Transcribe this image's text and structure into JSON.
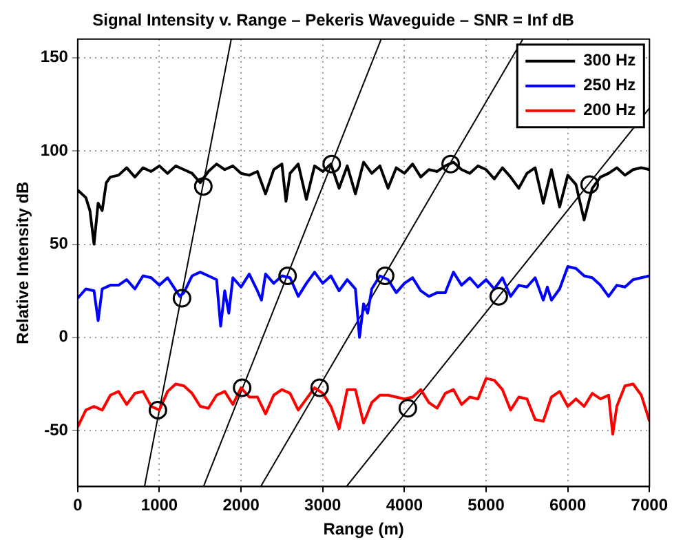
{
  "chart_data": {
    "type": "line",
    "title": "Signal Intensity v. Range – Pekeris Waveguide – SNR = Inf dB",
    "xlabel": "Range (m)",
    "ylabel": "Relative Intensity dB",
    "xlim": [
      0,
      7000
    ],
    "xticks": [
      0,
      1000,
      2000,
      3000,
      4000,
      5000,
      6000,
      7000
    ],
    "ylim": [
      -80,
      160
    ],
    "yticks": [
      -50,
      0,
      50,
      100,
      150
    ],
    "grid": true,
    "legend": "top right",
    "marker": "none",
    "line_style": "solid",
    "series": [
      {
        "name": "300 Hz",
        "color": "#000000",
        "x": [
          0,
          100,
          150,
          200,
          250,
          300,
          350,
          400,
          500,
          600,
          700,
          800,
          900,
          1000,
          1100,
          1200,
          1300,
          1400,
          1500,
          1600,
          1700,
          1800,
          1900,
          2000,
          2100,
          2200,
          2300,
          2400,
          2500,
          2550,
          2600,
          2700,
          2800,
          2900,
          3000,
          3100,
          3200,
          3300,
          3400,
          3500,
          3600,
          3700,
          3800,
          3900,
          4000,
          4100,
          4200,
          4300,
          4400,
          4500,
          4600,
          4700,
          4800,
          4900,
          5000,
          5100,
          5200,
          5300,
          5400,
          5500,
          5600,
          5700,
          5800,
          5900,
          6000,
          6100,
          6200,
          6300,
          6400,
          6500,
          6600,
          6700,
          6800,
          6900,
          7000
        ],
        "values": [
          79,
          75,
          68,
          50,
          72,
          68,
          83,
          86,
          87,
          91,
          86,
          91,
          89,
          92,
          88,
          92,
          90,
          88,
          83,
          89,
          93,
          90,
          92,
          88,
          87,
          89,
          77,
          90,
          93,
          73,
          88,
          93,
          74,
          92,
          89,
          93,
          80,
          92,
          77,
          94,
          88,
          92,
          80,
          91,
          88,
          93,
          86,
          90,
          89,
          92,
          94,
          90,
          88,
          92,
          90,
          85,
          91,
          86,
          80,
          88,
          91,
          72,
          90,
          70,
          87,
          82,
          63,
          80,
          86,
          88,
          91,
          87,
          90,
          91,
          90
        ]
      },
      {
        "name": "250 Hz",
        "color": "#0000ff",
        "x": [
          0,
          100,
          200,
          250,
          300,
          400,
          500,
          600,
          700,
          800,
          900,
          1000,
          1100,
          1250,
          1300,
          1400,
          1500,
          1600,
          1700,
          1750,
          1800,
          1850,
          1900,
          2000,
          2100,
          2200,
          2250,
          2300,
          2400,
          2500,
          2600,
          2700,
          2800,
          2900,
          3000,
          3100,
          3200,
          3300,
          3400,
          3450,
          3500,
          3550,
          3600,
          3700,
          3800,
          3900,
          4000,
          4100,
          4200,
          4300,
          4400,
          4500,
          4600,
          4700,
          4800,
          4900,
          5000,
          5100,
          5200,
          5300,
          5400,
          5500,
          5600,
          5700,
          5750,
          5800,
          5900,
          6000,
          6100,
          6200,
          6300,
          6400,
          6500,
          6600,
          6700,
          6800,
          6900,
          7000
        ],
        "values": [
          21,
          26,
          25,
          9,
          26,
          28,
          28,
          31,
          26,
          33,
          32,
          28,
          32,
          22,
          24,
          33,
          35,
          33,
          31,
          6,
          25,
          13,
          32,
          27,
          34,
          25,
          20,
          34,
          29,
          33,
          32,
          22,
          29,
          35,
          29,
          33,
          25,
          31,
          26,
          0,
          18,
          13,
          26,
          33,
          31,
          24,
          29,
          32,
          25,
          22,
          24,
          24,
          35,
          28,
          32,
          27,
          31,
          26,
          32,
          22,
          28,
          27,
          32,
          20,
          27,
          20,
          26,
          38,
          37,
          33,
          32,
          28,
          22,
          28,
          27,
          31,
          32,
          33
        ]
      },
      {
        "name": "200 Hz",
        "color": "#ff0000",
        "x": [
          0,
          100,
          200,
          300,
          400,
          500,
          600,
          700,
          800,
          900,
          1000,
          1100,
          1200,
          1300,
          1400,
          1500,
          1600,
          1700,
          1800,
          1900,
          2000,
          2100,
          2200,
          2300,
          2400,
          2500,
          2600,
          2700,
          2800,
          2900,
          3000,
          3100,
          3200,
          3300,
          3400,
          3500,
          3600,
          3700,
          3800,
          3900,
          4000,
          4100,
          4200,
          4300,
          4400,
          4500,
          4600,
          4700,
          4800,
          4900,
          5000,
          5100,
          5200,
          5300,
          5400,
          5500,
          5600,
          5700,
          5800,
          5900,
          6000,
          6100,
          6200,
          6300,
          6400,
          6500,
          6550,
          6600,
          6700,
          6800,
          6900,
          7000
        ],
        "values": [
          -48,
          -39,
          -37,
          -39,
          -31,
          -29,
          -36,
          -30,
          -29,
          -37,
          -39,
          -29,
          -25,
          -26,
          -30,
          -37,
          -38,
          -31,
          -29,
          -36,
          -27,
          -32,
          -32,
          -41,
          -31,
          -28,
          -30,
          -39,
          -33,
          -27,
          -30,
          -37,
          -49,
          -28,
          -28,
          -46,
          -35,
          -31,
          -31,
          -32,
          -33,
          -32,
          -28,
          -35,
          -38,
          -30,
          -28,
          -36,
          -32,
          -33,
          -22,
          -23,
          -28,
          -39,
          -32,
          -33,
          -44,
          -45,
          -32,
          -29,
          -37,
          -33,
          -37,
          -30,
          -33,
          -31,
          -52,
          -37,
          -26,
          -25,
          -31,
          -45
        ]
      },
      {
        "type": "line",
        "color": "#000000",
        "x": [
          818,
          1880
        ],
        "values": [
          -80,
          160
        ]
      },
      {
        "type": "line",
        "color": "#000000",
        "x": [
          1540,
          3715
        ],
        "values": [
          -80,
          160
        ]
      },
      {
        "type": "line",
        "color": "#000000",
        "x": [
          2240,
          5450
        ],
        "values": [
          -80,
          160
        ]
      },
      {
        "type": "line",
        "color": "#000000",
        "x": [
          3290,
          7000
        ],
        "values": [
          -80,
          123
        ]
      },
      {
        "type": "scatter",
        "color": "#000000",
        "marker": "circle",
        "x": [
          982,
          1277,
          1538,
          2013,
          2570,
          3110,
          2962,
          3764,
          4566,
          4042,
          5155,
          6268
        ],
        "values": [
          -39,
          21,
          81,
          -27,
          33,
          93,
          -27,
          33,
          93,
          -38,
          22,
          82
        ]
      }
    ]
  }
}
